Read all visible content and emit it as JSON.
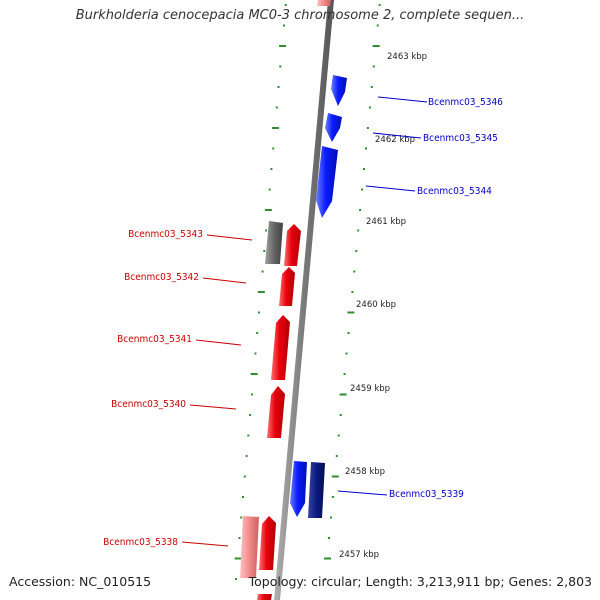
{
  "title": "Burkholderia cenocepacia MC0-3 chromosome 2, complete sequen...",
  "footer": {
    "accession": "Accession: NC_010515",
    "summary": "Topology: circular; Length: 3,213,911 bp; Genes: 2,803"
  },
  "colors": {
    "forward_gene": "#e8000b",
    "forward_gene_highlight": "#ff6a6a",
    "reverse_gene": "#0a1aff",
    "reverse_gene_dark": "#0a1a80",
    "reverse_gene_light": "#5a7aff",
    "gray_gene": "#666666",
    "pink_gene": "#f08a8a",
    "backbone": "#7a7a7a",
    "tick": "#2f8f2f",
    "forward_label": "#cc0000",
    "reverse_label": "#0000cc",
    "scale_label": "#222222"
  },
  "scale_labels": [
    "2463 kbp",
    "2462 kbp",
    "2461 kbp",
    "2460 kbp",
    "2459 kbp",
    "2458 kbp",
    "2457 kbp"
  ],
  "gene_labels": [
    {
      "text": "Bcenmc03_5346",
      "strand": "reverse"
    },
    {
      "text": "Bcenmc03_5345",
      "strand": "reverse"
    },
    {
      "text": "Bcenmc03_5344",
      "strand": "reverse"
    },
    {
      "text": "Bcenmc03_5343",
      "strand": "forward"
    },
    {
      "text": "Bcenmc03_5342",
      "strand": "forward"
    },
    {
      "text": "Bcenmc03_5341",
      "strand": "forward"
    },
    {
      "text": "Bcenmc03_5340",
      "strand": "forward"
    },
    {
      "text": "Bcenmc03_5339",
      "strand": "reverse"
    },
    {
      "text": "Bcenmc03_5338",
      "strand": "forward"
    }
  ]
}
